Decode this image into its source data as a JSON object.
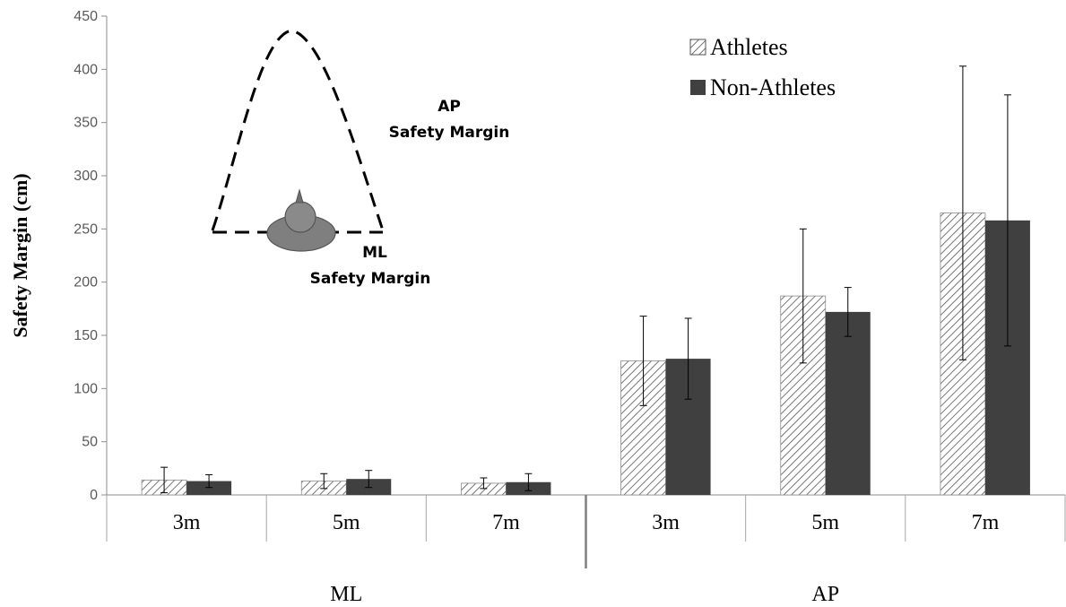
{
  "chart_data": {
    "type": "bar",
    "title": "",
    "xlabel": "",
    "ylabel": "Safety Margin (cm)",
    "ylim": [
      0,
      450
    ],
    "yticks": [
      0,
      50,
      100,
      150,
      200,
      250,
      300,
      350,
      400,
      450
    ],
    "grid": false,
    "legend_position": "top-right",
    "groups": [
      {
        "label": "ML",
        "categories": [
          "3m",
          "5m",
          "7m"
        ]
      },
      {
        "label": "AP",
        "categories": [
          "3m",
          "5m",
          "7m"
        ]
      }
    ],
    "categories": [
      "3m",
      "5m",
      "7m",
      "3m",
      "5m",
      "7m"
    ],
    "series": [
      {
        "name": "Athletes",
        "pattern": "diagonal-hatch",
        "values": [
          14,
          13,
          11,
          126,
          187,
          265
        ],
        "errors": [
          12,
          7,
          5,
          42,
          63,
          138
        ]
      },
      {
        "name": "Non-Athletes",
        "color": "#404040",
        "values": [
          13,
          15,
          12,
          128,
          172,
          258
        ],
        "errors": [
          6,
          8,
          8,
          38,
          23,
          118
        ]
      }
    ],
    "annotations": {
      "ap_margin_line1": "AP",
      "ap_margin_line2": "Safety Margin",
      "ml_margin_line1": "ML",
      "ml_margin_line2": "Safety Margin"
    }
  }
}
